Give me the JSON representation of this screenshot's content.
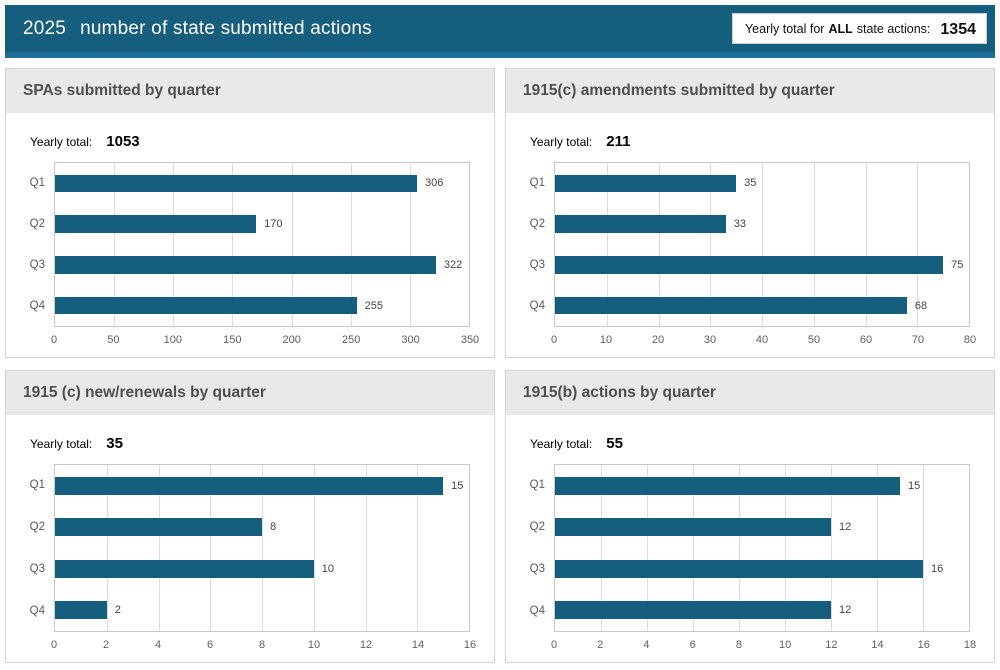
{
  "header": {
    "year": "2025",
    "title": "number of state submitted actions",
    "badge": {
      "prefix": "Yearly total for",
      "bold_word": "ALL",
      "suffix": "state actions:",
      "value": "1354"
    }
  },
  "yearly_total_label": "Yearly total:",
  "colors": {
    "bar": "#165e7d",
    "header_bg": "#165e7d",
    "header_accent": "#1e6f96",
    "panel_header_bg": "#e9e9e9"
  },
  "chart_data": [
    {
      "type": "bar",
      "orientation": "horizontal",
      "title": "SPAs submitted by quarter",
      "yearly_total": "1053",
      "categories": [
        "Q1",
        "Q2",
        "Q3",
        "Q4"
      ],
      "values": [
        306,
        170,
        322,
        255
      ],
      "xlim": [
        0,
        350
      ],
      "xticks": [
        0,
        50,
        100,
        150,
        200,
        250,
        300,
        350
      ],
      "grid": true,
      "data_labels": true,
      "legend": false
    },
    {
      "type": "bar",
      "orientation": "horizontal",
      "title": "1915(c) amendments submitted by quarter",
      "yearly_total": "211",
      "categories": [
        "Q1",
        "Q2",
        "Q3",
        "Q4"
      ],
      "values": [
        35,
        33,
        75,
        68
      ],
      "xlim": [
        0,
        80
      ],
      "xticks": [
        0,
        10,
        20,
        30,
        40,
        50,
        60,
        70,
        80
      ],
      "grid": true,
      "data_labels": true,
      "legend": false
    },
    {
      "type": "bar",
      "orientation": "horizontal",
      "title": "1915 (c) new/renewals by quarter",
      "yearly_total": "35",
      "categories": [
        "Q1",
        "Q2",
        "Q3",
        "Q4"
      ],
      "values": [
        15,
        8,
        10,
        2
      ],
      "xlim": [
        0,
        16
      ],
      "xticks": [
        0,
        2,
        4,
        6,
        8,
        10,
        12,
        14,
        16
      ],
      "grid": true,
      "data_labels": true,
      "legend": false
    },
    {
      "type": "bar",
      "orientation": "horizontal",
      "title": "1915(b) actions by quarter",
      "yearly_total": "55",
      "categories": [
        "Q1",
        "Q2",
        "Q3",
        "Q4"
      ],
      "values": [
        15,
        12,
        16,
        12
      ],
      "xlim": [
        0,
        18
      ],
      "xticks": [
        0,
        2,
        4,
        6,
        8,
        10,
        12,
        14,
        16,
        18
      ],
      "grid": true,
      "data_labels": true,
      "legend": false
    }
  ]
}
